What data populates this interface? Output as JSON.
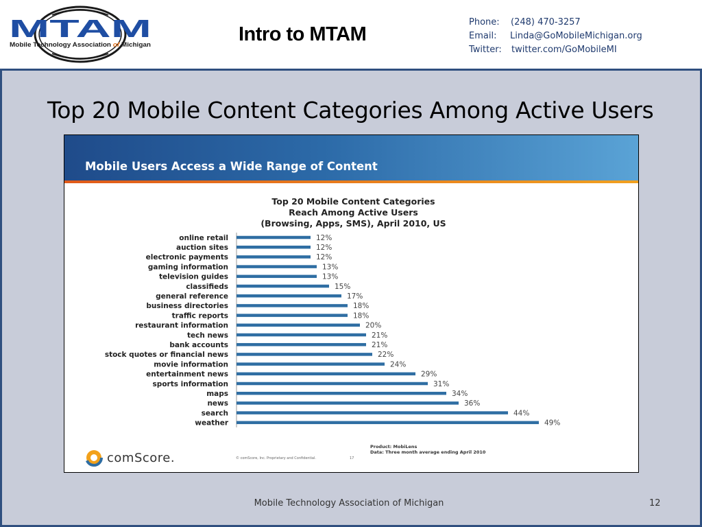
{
  "header": {
    "logo_acronym": "MTAM",
    "logo_tagline_part1": "Mobile Technology Association ",
    "logo_tagline_of": "of",
    "logo_tagline_part2": " Michigan",
    "slide_heading": "Intro to MTAM",
    "contact": {
      "phone_label": "Phone:",
      "phone_value": "(248) 470-3257",
      "email_label": "Email:",
      "email_value": "Linda@GoMobileMichigan.org",
      "twitter_label": "Twitter:",
      "twitter_value": "twitter.com/GoMobileMI"
    }
  },
  "slide": {
    "title": "Top 20 Mobile Content Categories Among Active Users",
    "footer_text": "Mobile Technology Association of Michigan",
    "page_number": "12"
  },
  "embedded_slide": {
    "banner_text": "Mobile Users Access a Wide Range of Content",
    "product_line": "Product: MobiLens",
    "data_line": "Data: Three month average ending April 2010",
    "copyright": "© comScore, Inc.  Proprietary and Confidential.",
    "page": "17",
    "brand": "comScore."
  },
  "chart_data": {
    "type": "bar",
    "orientation": "horizontal",
    "title_lines": [
      "Top 20 Mobile Content Categories",
      "Reach Among Active Users",
      "(Browsing, Apps, SMS), April 2010, US"
    ],
    "categories": [
      "online retail",
      "auction sites",
      "electronic payments",
      "gaming information",
      "television guides",
      "classifieds",
      "general reference",
      "business directories",
      "traffic reports",
      "restaurant information",
      "tech news",
      "bank accounts",
      "stock quotes or financial news",
      "movie information",
      "entertainment news",
      "sports information",
      "maps",
      "news",
      "search",
      "weather"
    ],
    "values": [
      12,
      12,
      12,
      13,
      13,
      15,
      17,
      18,
      18,
      20,
      21,
      21,
      22,
      24,
      29,
      31,
      34,
      36,
      44,
      49
    ],
    "value_labels": [
      "12%",
      "12%",
      "12%",
      "13%",
      "13%",
      "15%",
      "17%",
      "18%",
      "18%",
      "20%",
      "21%",
      "21%",
      "22%",
      "24%",
      "29%",
      "31%",
      "34%",
      "36%",
      "44%",
      "49%"
    ],
    "bar_color": "#2f6ea3",
    "grid": false,
    "legend": "none"
  },
  "colors": {
    "slide_background": "#c8ccd9",
    "slide_border": "#2f4f7f",
    "logo_blue": "#1f4ea3",
    "contact_text": "#1f3a6e"
  }
}
